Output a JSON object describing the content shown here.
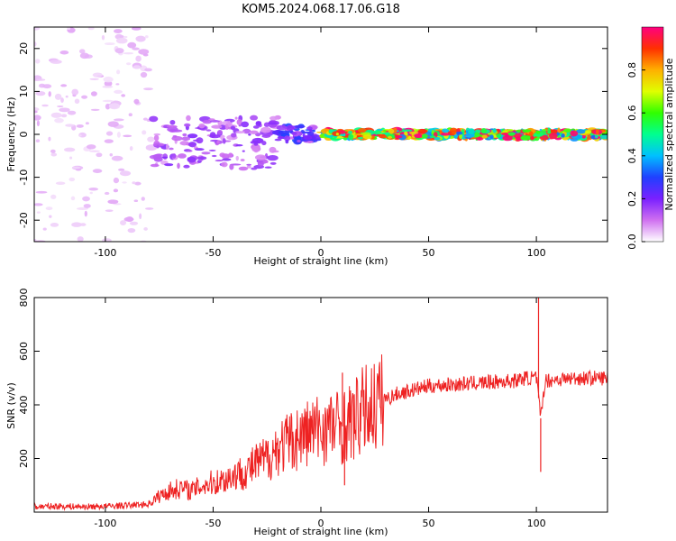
{
  "title": "KOM5.2024.068.17.06.G18",
  "colors": {
    "snr_line": "#ee2222",
    "colorbar": [
      "#ffffff",
      "#d070f0",
      "#7a20ff",
      "#2040ff",
      "#00c0ff",
      "#00ff90",
      "#30ff00",
      "#e0ff00",
      "#ffb000",
      "#ff3000",
      "#ff0080"
    ]
  },
  "chart_data": [
    {
      "type": "heatmap",
      "xlabel": "Height of straight line (km)",
      "ylabel": "Frequency (Hz)",
      "xlim": [
        -133,
        133
      ],
      "ylim": [
        -25,
        25
      ],
      "xticks": [
        -100,
        -50,
        0,
        50,
        100
      ],
      "xtick_labels": [
        "-100",
        "-50",
        "0",
        "50",
        "100"
      ],
      "yticks": [
        -20,
        -10,
        0,
        10,
        20
      ],
      "ytick_labels": [
        "-20",
        "-10",
        "0",
        "10",
        "20"
      ],
      "colorbar": {
        "label": "Normalized spectral amplitude",
        "range": [
          0,
          1
        ],
        "ticks": [
          0,
          0.2,
          0.4,
          0.6,
          0.8
        ],
        "tick_labels": [
          "0.0",
          "0.2",
          "0.4",
          "0.6",
          "0.8"
        ]
      },
      "regions": [
        {
          "x_range": [
            -133,
            -78
          ],
          "freq_range": [
            -25,
            25
          ],
          "amplitude": 0.05
        },
        {
          "x_range": [
            -78,
            -20
          ],
          "freq_range": [
            -8,
            4
          ],
          "amplitude": 0.15
        },
        {
          "x_range": [
            -20,
            0
          ],
          "freq_range": [
            -2,
            2
          ],
          "amplitude": 0.25
        },
        {
          "x_range": [
            0,
            133
          ],
          "freq_range": [
            -1,
            1
          ],
          "amplitude": 0.8
        }
      ]
    },
    {
      "type": "line",
      "xlabel": "Height of straight line (km)",
      "ylabel": "SNR (v/v)",
      "xlim": [
        -133,
        133
      ],
      "ylim": [
        0,
        800
      ],
      "xticks": [
        -100,
        -50,
        0,
        50,
        100
      ],
      "xtick_labels": [
        "-100",
        "-50",
        "0",
        "50",
        "100"
      ],
      "yticks": [
        200,
        400,
        600,
        800
      ],
      "ytick_labels": [
        "200",
        "400",
        "600",
        "800"
      ],
      "series": [
        {
          "x": [
            -133,
            -120,
            -110,
            -100,
            -90,
            -80,
            -75,
            -70,
            -65,
            -60,
            -55,
            -50,
            -45,
            -40,
            -35,
            -30,
            -25,
            -20,
            -15,
            -10,
            -5,
            0,
            5,
            10,
            15,
            20,
            25,
            30,
            35,
            40,
            50,
            60,
            70,
            80,
            90,
            95,
            100,
            102,
            104,
            110,
            120,
            133
          ],
          "y": [
            20,
            22,
            20,
            22,
            25,
            30,
            60,
            80,
            90,
            80,
            100,
            110,
            120,
            140,
            150,
            180,
            200,
            240,
            260,
            280,
            300,
            310,
            320,
            320,
            340,
            380,
            400,
            420,
            440,
            450,
            470,
            475,
            480,
            485,
            490,
            500,
            500,
            350,
            490,
            495,
            500,
            500
          ]
        }
      ],
      "spikes": [
        {
          "x": 10,
          "y": 520
        },
        {
          "x": 11,
          "y": 100
        },
        {
          "x": 101,
          "y": 800
        },
        {
          "x": 102,
          "y": 150
        }
      ]
    }
  ]
}
